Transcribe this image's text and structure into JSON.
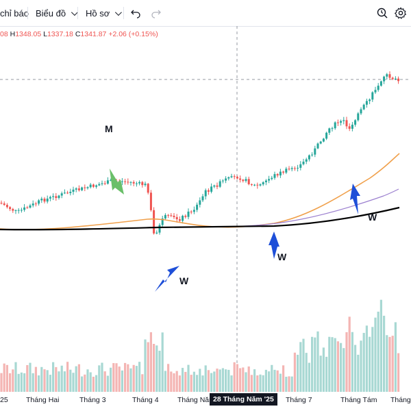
{
  "toolbar": {
    "indicators_label": "chỉ báo",
    "layouts_label": "Biểu đồ",
    "profile_label": "Hồ sơ",
    "icons": [
      "undo-icon",
      "redo-icon",
      "quick-search-icon",
      "settings-icon"
    ]
  },
  "legend": {
    "open_tail": "08",
    "high_label": "H",
    "high": "1348.05",
    "low_label": "L",
    "low": "1337.18",
    "close_label": "C",
    "close": "1341.87",
    "change": "+2.06 (+0.15%)"
  },
  "x_axis": {
    "ticks": [
      "25",
      "Tháng Hai",
      "Tháng 3",
      "Tháng 4",
      "Tháng Năm",
      "Tháng 7",
      "Tháng Tám",
      "Tháng"
    ],
    "crosshair_label": "28 Tháng Năm '25"
  },
  "annotations": {
    "m_top": "M",
    "w_first": "W",
    "w_second": "W",
    "w_third": "W"
  },
  "colors": {
    "up": "#26a69a",
    "down": "#ef5350",
    "ma_short": "#f0a04b",
    "ma_mid": "#9b7fcf",
    "ma_long": "#000000",
    "arrow_blue": "#1e4fd8",
    "arrow_green": "#6abf69"
  }
}
